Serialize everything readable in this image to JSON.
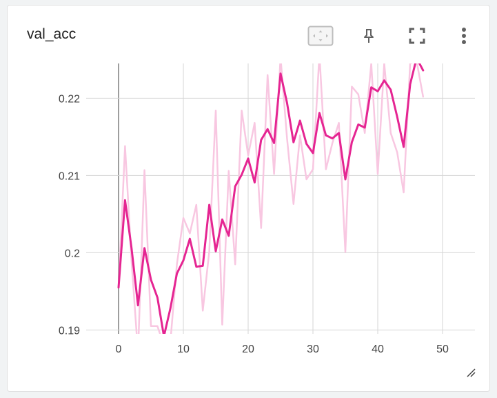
{
  "card": {
    "title": "val_acc"
  },
  "toolbar": {
    "fit_icon": "fit-domain-icon",
    "pin_icon": "pin-icon",
    "fullscreen_icon": "fullscreen-icon",
    "menu_icon": "more-vert-icon"
  },
  "colors": {
    "smoothed": "#e52592",
    "raw": "#f8c7e1",
    "grid": "#d5d5d5",
    "zero_axis": "#9e9e9e",
    "tick_text": "#424242"
  },
  "chart_data": {
    "type": "line",
    "title": "val_acc",
    "xlim": [
      -5,
      55
    ],
    "ylim": [
      0.1895,
      0.2245
    ],
    "x_ticks": [
      "0",
      "10",
      "20",
      "30",
      "40",
      "50"
    ],
    "y_ticks": [
      "0.19",
      "0.2",
      "0.21",
      "0.22"
    ],
    "grid": true,
    "series": [
      {
        "values_x": [
          0,
          1,
          2,
          3,
          4,
          5,
          6,
          7,
          8,
          9,
          10,
          11,
          12,
          13,
          14,
          15,
          16,
          17,
          18,
          19,
          20,
          21,
          22,
          23,
          24,
          25,
          26,
          27,
          28,
          29,
          30,
          31,
          32,
          33,
          34,
          35,
          36,
          37,
          38,
          39,
          40,
          41,
          42,
          43,
          44,
          45,
          46,
          47
        ],
        "values": [
          0.1955,
          0.2138,
          0.199,
          0.187,
          0.2107,
          0.1905,
          0.1905,
          0.188,
          0.1885,
          0.1985,
          0.2045,
          0.2025,
          0.2062,
          0.1925,
          0.2002,
          0.2184,
          0.1907,
          0.2106,
          0.1985,
          0.2184,
          0.2126,
          0.2168,
          0.2032,
          0.223,
          0.2102,
          0.2253,
          0.2148,
          0.2063,
          0.2152,
          0.2095,
          0.2108,
          0.2257,
          0.2108,
          0.2142,
          0.2168,
          0.2001,
          0.2215,
          0.2205,
          0.2155,
          0.2245,
          0.2102,
          0.2245,
          0.2155,
          0.213,
          0.2078,
          0.2245,
          0.2248,
          0.2202
        ]
      },
      {
        "values_x": [
          0,
          1,
          2,
          3,
          4,
          5,
          6,
          7,
          8,
          9,
          10,
          11,
          12,
          13,
          14,
          15,
          16,
          17,
          18,
          19,
          20,
          21,
          22,
          23,
          24,
          25,
          26,
          27,
          28,
          29,
          30,
          31,
          32,
          33,
          34,
          35,
          36,
          37,
          38,
          39,
          40,
          41,
          42,
          43,
          44,
          45,
          46,
          47
        ],
        "values": [
          0.1955,
          0.2068,
          0.2006,
          0.1932,
          0.2006,
          0.1965,
          0.1942,
          0.1892,
          0.1928,
          0.1973,
          0.199,
          0.2018,
          0.1982,
          0.1983,
          0.2062,
          0.2002,
          0.2043,
          0.2022,
          0.2086,
          0.2101,
          0.2122,
          0.2091,
          0.2146,
          0.216,
          0.2142,
          0.2232,
          0.2194,
          0.2143,
          0.2171,
          0.2141,
          0.2129,
          0.2181,
          0.2152,
          0.2148,
          0.2155,
          0.2095,
          0.2143,
          0.2166,
          0.2162,
          0.2214,
          0.2209,
          0.2223,
          0.2211,
          0.2176,
          0.2137,
          0.2218,
          0.2252,
          0.2236
        ]
      }
    ]
  }
}
